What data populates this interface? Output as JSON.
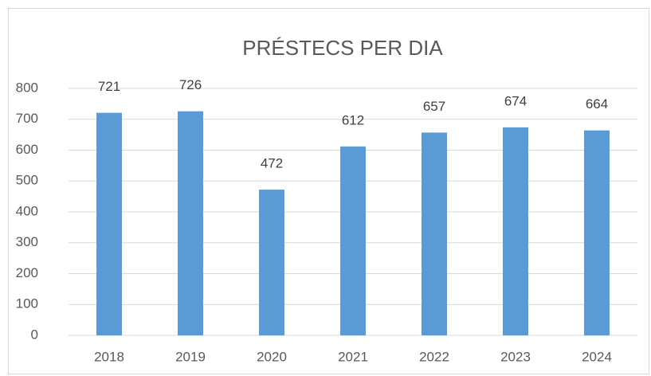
{
  "chart_data": {
    "type": "bar",
    "title": "PRÉSTECS PER DIA",
    "categories": [
      "2018",
      "2019",
      "2020",
      "2021",
      "2022",
      "2023",
      "2024"
    ],
    "values": [
      721,
      726,
      472,
      612,
      657,
      674,
      664
    ],
    "color": "#5b9bd5",
    "ylim": [
      0,
      800
    ],
    "yticks": [
      0,
      100,
      200,
      300,
      400,
      500,
      600,
      700,
      800
    ],
    "grid": true
  }
}
